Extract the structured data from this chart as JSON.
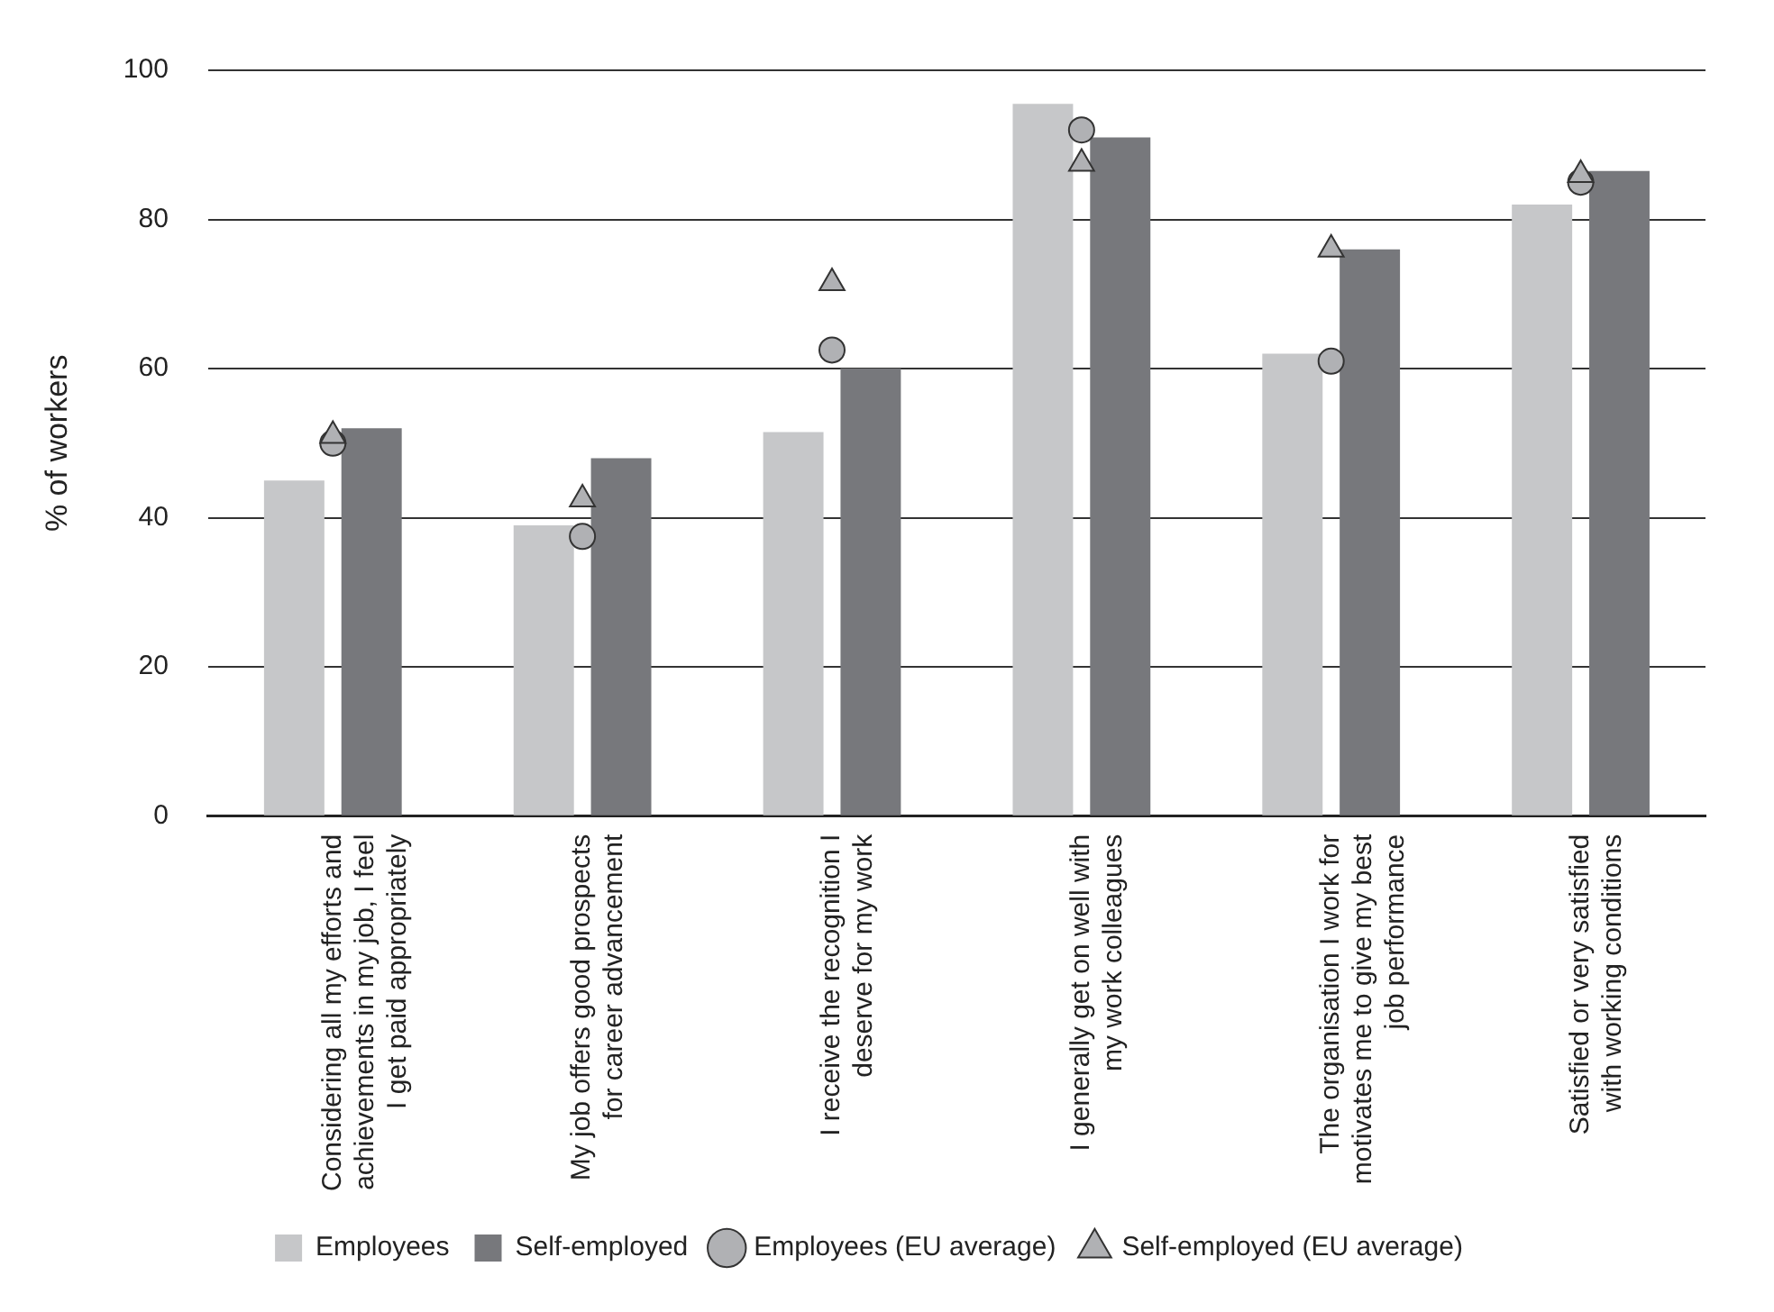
{
  "chart_data": {
    "type": "bar",
    "ylabel": "% of workers",
    "categories": [
      "Considering all my efforts and achievements in my job, I feel I get paid appropriately",
      "My job offers good prospects for career advancement",
      "I receive the recognition I deserve for my work",
      "I generally get on well with my work colleagues",
      "The organisation I work for motivates me to give my best job performance",
      "Satisfied or very satisfied with working conditions"
    ],
    "series": [
      {
        "name": "Employees",
        "color": "#c6c7c9",
        "values": [
          45,
          39,
          51.5,
          95.5,
          62,
          82
        ]
      },
      {
        "name": "Self-employed",
        "color": "#77787c",
        "values": [
          52,
          48,
          60,
          91,
          76,
          86.5
        ]
      },
      {
        "name": "Employees (EU average)",
        "type": "scatter",
        "marker": "circle",
        "color": "#b0b1b4",
        "values": [
          50,
          37.5,
          62.5,
          92,
          61,
          85
        ]
      },
      {
        "name": "Self-employed (EU average)",
        "type": "scatter",
        "marker": "triangle",
        "color": "#b0b1b4",
        "values": [
          51,
          42.5,
          71.5,
          87.5,
          76,
          86
        ]
      }
    ],
    "ylim": [
      0,
      100
    ],
    "yticks": [
      0,
      20,
      40,
      60,
      80,
      100
    ],
    "grid": "y",
    "legend": "bottom"
  }
}
